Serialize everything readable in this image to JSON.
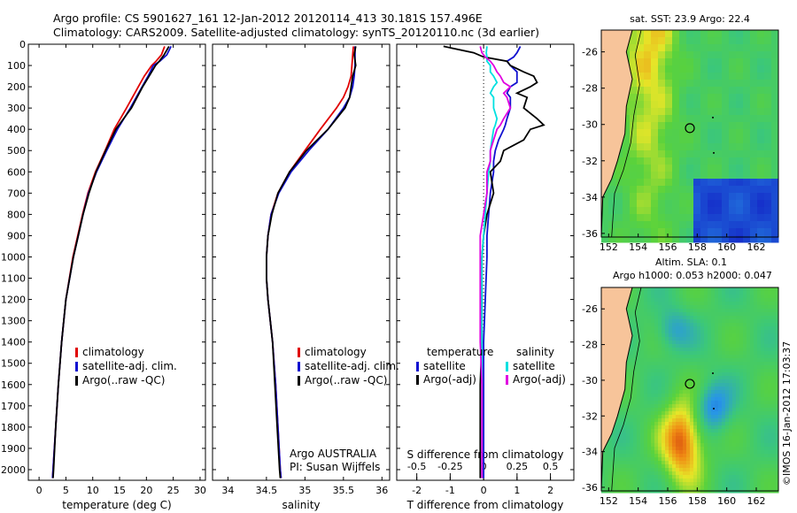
{
  "header": {
    "line1": "Argo profile: CS 5901627_161 12-Jan-2012 20120114_413 30.181S 157.496E",
    "line2": "Climatology: CARS2009. Satellite-adjusted climatology: synTS_20120110.nc (3d earlier)"
  },
  "colors": {
    "climatology": "#e00000",
    "satellite": "#1010d0",
    "argo": "#000000",
    "sat_salinity": "#00e0e0",
    "argo_salinity": "#e000e0",
    "land": "#f7c49a"
  },
  "chart_data": [
    {
      "type": "line",
      "id": "temperature",
      "xlabel": "temperature (deg C)",
      "xlim": [
        -2,
        31
      ],
      "ylim": [
        2050,
        0
      ],
      "xticks": [
        0,
        5,
        10,
        15,
        20,
        25,
        30
      ],
      "yticks": [
        0,
        100,
        200,
        300,
        400,
        500,
        600,
        700,
        800,
        900,
        1000,
        1100,
        1200,
        1300,
        1400,
        1500,
        1600,
        1700,
        1800,
        1900,
        2000
      ],
      "legend": [
        "climatology",
        "satellite-adj. clim.",
        "Argo(..raw -QC)"
      ],
      "depth": [
        10,
        50,
        80,
        100,
        150,
        200,
        300,
        400,
        500,
        600,
        700,
        800,
        900,
        1000,
        1200,
        1400,
        1600,
        1800,
        2000,
        2040
      ],
      "series": [
        {
          "name": "climatology",
          "color": "#e00000",
          "values": [
            23.4,
            22.8,
            21.8,
            21.0,
            19.6,
            18.5,
            16.3,
            14.0,
            12.3,
            10.5,
            9.1,
            8.1,
            7.2,
            6.3,
            5.0,
            4.2,
            3.6,
            3.1,
            2.6,
            2.5
          ]
        },
        {
          "name": "satellite-adj. clim.",
          "color": "#1010d0",
          "values": [
            24.6,
            23.8,
            22.5,
            21.3,
            20.3,
            19.2,
            17.0,
            14.6,
            12.6,
            10.7,
            9.2,
            8.2,
            7.3,
            6.4,
            5.0,
            4.2,
            3.6,
            3.1,
            2.6,
            2.5
          ]
        },
        {
          "name": "Argo(..raw -QC)",
          "color": "#000000",
          "values": [
            24.2,
            23.3,
            22.4,
            21.7,
            20.5,
            19.3,
            17.2,
            14.3,
            12.4,
            10.6,
            9.3,
            8.2,
            7.3,
            6.4,
            5.0,
            4.2,
            3.6,
            3.1,
            2.7,
            2.6
          ]
        }
      ]
    },
    {
      "type": "line",
      "id": "salinity",
      "xlabel": "salinity",
      "xlim": [
        33.8,
        36.1
      ],
      "ylim": [
        2050,
        0
      ],
      "xticks": [
        34,
        34.5,
        35,
        35.5,
        36
      ],
      "legend": [
        "climatology",
        "satellite-adj. clim.",
        "Argo(..raw -QC)"
      ],
      "annotation": [
        "Argo AUSTRALIA",
        "PI: Susan Wijffels"
      ],
      "depth": [
        10,
        50,
        100,
        150,
        200,
        250,
        300,
        400,
        500,
        600,
        700,
        800,
        900,
        1000,
        1100,
        1200,
        1300,
        1400,
        1600,
        1800,
        2000,
        2040
      ],
      "series": [
        {
          "name": "climatology",
          "color": "#e00000",
          "values": [
            35.63,
            35.62,
            35.61,
            35.6,
            35.56,
            35.5,
            35.41,
            35.2,
            35.0,
            34.8,
            34.65,
            34.56,
            34.52,
            34.5,
            34.5,
            34.52,
            34.55,
            34.58,
            34.62,
            34.65,
            34.68,
            34.69
          ]
        },
        {
          "name": "satellite-adj. clim.",
          "color": "#1010d0",
          "values": [
            35.65,
            35.65,
            35.65,
            35.64,
            35.62,
            35.58,
            35.5,
            35.3,
            35.05,
            34.82,
            34.66,
            34.56,
            34.52,
            34.5,
            34.5,
            34.52,
            34.55,
            34.58,
            34.62,
            34.65,
            34.68,
            34.69
          ]
        },
        {
          "name": "Argo(..raw -QC)",
          "color": "#000000",
          "values": [
            35.66,
            35.64,
            35.66,
            35.62,
            35.6,
            35.58,
            35.52,
            35.3,
            35.02,
            34.8,
            34.65,
            34.57,
            34.52,
            34.5,
            34.5,
            34.52,
            34.55,
            34.58,
            34.61,
            34.64,
            34.67,
            34.68
          ]
        }
      ]
    },
    {
      "type": "line",
      "id": "difference",
      "xlabel": "T difference from climatology",
      "xlabel2": "S difference from climatology",
      "xlim": [
        -2.6,
        2.7
      ],
      "ylim": [
        2050,
        0
      ],
      "xticks": [
        -2,
        -1,
        0,
        1,
        2
      ],
      "sticks_labels": [
        "-0.5",
        "-0.25",
        "0",
        "0.25",
        "0.5"
      ],
      "sticks": [
        -2,
        -1,
        0,
        1,
        2
      ],
      "legend_temperature_title": "temperature",
      "legend_salinity_title": "salinity",
      "legend": [
        "satellite",
        "Argo(-adj)",
        "satellite",
        "Argo(-adj)"
      ],
      "depth": [
        10,
        40,
        60,
        80,
        100,
        130,
        150,
        180,
        200,
        230,
        250,
        300,
        350,
        380,
        400,
        450,
        500,
        550,
        600,
        700,
        800,
        900,
        1000,
        1200,
        1400,
        1600,
        1800,
        2000,
        2040
      ],
      "series": [
        {
          "name": "temperature satellite",
          "color": "#1010d0",
          "values": [
            1.1,
            1.0,
            0.9,
            0.7,
            0.8,
            1.0,
            1.0,
            1.0,
            0.8,
            0.7,
            0.8,
            0.8,
            0.7,
            0.65,
            0.6,
            0.45,
            0.35,
            0.3,
            0.3,
            0.2,
            0.15,
            0.1,
            0.1,
            0.05,
            0.0,
            0.0,
            0.0,
            0.0,
            0.0
          ]
        },
        {
          "name": "temperature Argo(-adj)",
          "color": "#000000",
          "values": [
            -1.2,
            -0.3,
            0.0,
            0.7,
            0.8,
            1.2,
            1.5,
            1.6,
            1.4,
            1.0,
            1.3,
            1.2,
            1.6,
            1.8,
            1.4,
            1.2,
            0.6,
            0.5,
            0.2,
            0.3,
            0.1,
            0.0,
            -0.05,
            -0.05,
            -0.05,
            -0.1,
            -0.1,
            -0.1,
            -0.1
          ]
        },
        {
          "name": "salinity satellite",
          "color": "#00e0e0",
          "values": [
            0.1,
            0.08,
            0.1,
            0.1,
            0.2,
            0.2,
            0.3,
            0.4,
            0.3,
            0.2,
            0.3,
            0.3,
            0.4,
            0.35,
            0.3,
            0.25,
            0.2,
            0.2,
            0.15,
            0.1,
            0.05,
            0.0,
            -0.05,
            -0.05,
            -0.05,
            -0.05,
            -0.05,
            -0.05,
            -0.05
          ]
        },
        {
          "name": "salinity Argo(-adj)",
          "color": "#e000e0",
          "values": [
            -0.1,
            -0.05,
            0.05,
            0.2,
            0.3,
            0.4,
            0.5,
            0.6,
            0.8,
            0.6,
            0.7,
            0.8,
            0.6,
            0.5,
            0.4,
            0.3,
            0.2,
            0.2,
            0.1,
            0.1,
            0.0,
            -0.1,
            -0.1,
            -0.1,
            -0.1,
            -0.05,
            -0.05,
            -0.05,
            -0.05
          ]
        }
      ]
    },
    {
      "type": "heatmap",
      "id": "sst-map",
      "title": "sat. SST: 23.9  Argo: 22.4",
      "xlim": [
        151.5,
        163.5
      ],
      "ylim": [
        -36.2,
        -24.8
      ],
      "xticks": [
        152,
        154,
        156,
        158,
        160,
        162
      ],
      "yticks": [
        -26,
        -28,
        -30,
        -32,
        -34,
        -36
      ],
      "argo_position": [
        157.5,
        -30.2
      ]
    },
    {
      "type": "heatmap",
      "id": "sla-map",
      "title_line1": "Altim. SLA: 0.1",
      "title_line2": "Argo h1000: 0.053 h2000: 0.047",
      "xlim": [
        151.5,
        163.5
      ],
      "ylim": [
        -36.2,
        -24.8
      ],
      "xticks": [
        152,
        154,
        156,
        158,
        160,
        162
      ],
      "yticks": [
        -26,
        -28,
        -30,
        -32,
        -34,
        -36
      ],
      "argo_position": [
        157.5,
        -30.2
      ]
    }
  ],
  "credit": "©IMOS 16-Jan-2012 17:03:37"
}
